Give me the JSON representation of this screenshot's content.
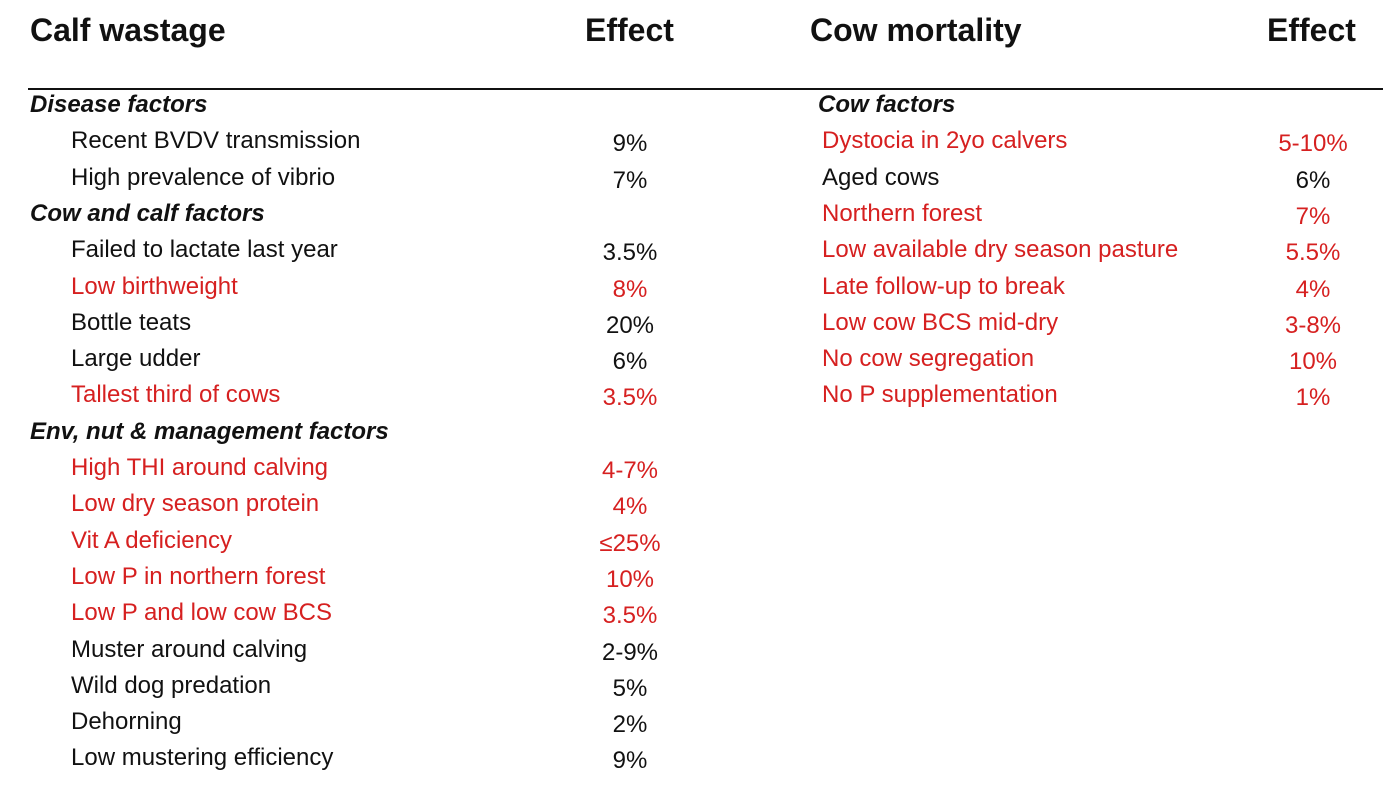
{
  "left": {
    "heading": "Calf wastage",
    "effect_heading": "Effect",
    "rows": [
      {
        "kind": "section",
        "label": "Disease factors"
      },
      {
        "kind": "item",
        "label": "Recent BVDV transmission",
        "effect": "9%",
        "color": "#111111"
      },
      {
        "kind": "item",
        "label": "High prevalence of vibrio",
        "effect": "7%",
        "color": "#111111"
      },
      {
        "kind": "section",
        "label": "Cow and calf factors"
      },
      {
        "kind": "item",
        "label": "Failed to lactate last year",
        "effect": "3.5%",
        "color": "#111111"
      },
      {
        "kind": "item",
        "label": "Low birthweight",
        "effect": "8%",
        "color": "#d62020"
      },
      {
        "kind": "item",
        "label": "Bottle teats",
        "effect": "20%",
        "color": "#111111"
      },
      {
        "kind": "item",
        "label": "Large udder",
        "effect": "6%",
        "color": "#111111"
      },
      {
        "kind": "item",
        "label": "Tallest third of cows",
        "effect": "3.5%",
        "color": "#d62020"
      },
      {
        "kind": "section",
        "label": "Env, nut & management factors"
      },
      {
        "kind": "item",
        "label": "High THI around calving",
        "effect": "4-7%",
        "color": "#d62020"
      },
      {
        "kind": "item",
        "label": "Low dry season protein",
        "effect": "4%",
        "color": "#d62020"
      },
      {
        "kind": "item",
        "label": "Vit A deficiency",
        "effect": "≤25%",
        "color": "#d62020"
      },
      {
        "kind": "item",
        "label": "Low P in northern forest",
        "effect": "10%",
        "color": "#d62020"
      },
      {
        "kind": "item",
        "label": "Low P and low cow BCS",
        "effect": "3.5%",
        "color": "#d62020"
      },
      {
        "kind": "item",
        "label": "Muster around calving",
        "effect": "2-9%",
        "color": "#111111"
      },
      {
        "kind": "item",
        "label": "Wild dog predation",
        "effect": "5%",
        "color": "#111111"
      },
      {
        "kind": "item",
        "label": "Dehorning",
        "effect": "2%",
        "color": "#111111"
      },
      {
        "kind": "item",
        "label": "Low mustering efficiency",
        "effect": "9%",
        "color": "#111111"
      }
    ]
  },
  "right": {
    "heading": "Cow mortality",
    "effect_heading": "Effect",
    "rows": [
      {
        "kind": "section",
        "label": "Cow factors"
      },
      {
        "kind": "item",
        "label": "Dystocia in 2yo calvers",
        "effect": "5-10%",
        "color": "#d62020"
      },
      {
        "kind": "item",
        "label": "Aged cows",
        "effect": "6%",
        "color": "#111111"
      },
      {
        "kind": "item",
        "label": "Northern forest",
        "effect": "7%",
        "color": "#d62020"
      },
      {
        "kind": "item",
        "label": "Low available dry season pasture",
        "effect": "5.5%",
        "color": "#d62020"
      },
      {
        "kind": "item",
        "label": "Late follow-up to break",
        "effect": "4%",
        "color": "#d62020"
      },
      {
        "kind": "item",
        "label": "Low cow BCS mid-dry",
        "effect": "3-8%",
        "color": "#d62020"
      },
      {
        "kind": "item",
        "label": "No cow segregation",
        "effect": "10%",
        "color": "#d62020"
      },
      {
        "kind": "item",
        "label": "No P supplementation",
        "effect": "1%",
        "color": "#d62020"
      }
    ]
  }
}
